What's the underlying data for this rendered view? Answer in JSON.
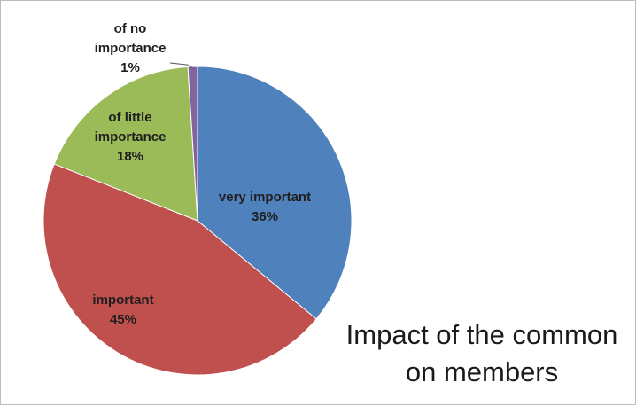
{
  "chart_data": {
    "type": "pie",
    "title_lines": [
      "Impact of the common",
      "on members"
    ],
    "slices": [
      {
        "label_lines": [
          "very important",
          "36%"
        ],
        "value": 36,
        "color": "#4f81bd"
      },
      {
        "label_lines": [
          "important",
          "45%"
        ],
        "value": 45,
        "color": "#c0504d"
      },
      {
        "label_lines": [
          "of little",
          "importance",
          "18%"
        ],
        "value": 18,
        "color": "#9bbb59"
      },
      {
        "label_lines": [
          "of no",
          "importance",
          "1%"
        ],
        "value": 1,
        "color": "#8064a2"
      }
    ],
    "start": "top, clockwise"
  }
}
